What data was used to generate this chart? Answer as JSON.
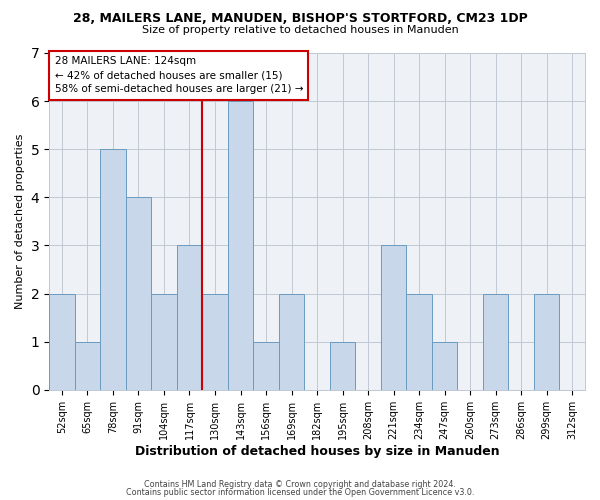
{
  "title1": "28, MAILERS LANE, MANUDEN, BISHOP'S STORTFORD, CM23 1DP",
  "title2": "Size of property relative to detached houses in Manuden",
  "xlabel": "Distribution of detached houses by size in Manuden",
  "ylabel": "Number of detached properties",
  "bar_labels": [
    "52sqm",
    "65sqm",
    "78sqm",
    "91sqm",
    "104sqm",
    "117sqm",
    "130sqm",
    "143sqm",
    "156sqm",
    "169sqm",
    "182sqm",
    "195sqm",
    "208sqm",
    "221sqm",
    "234sqm",
    "247sqm",
    "260sqm",
    "273sqm",
    "286sqm",
    "299sqm",
    "312sqm"
  ],
  "bar_values": [
    2,
    1,
    5,
    4,
    2,
    3,
    2,
    6,
    1,
    2,
    0,
    1,
    0,
    3,
    2,
    1,
    0,
    2,
    0,
    2,
    0
  ],
  "bar_color": "#c8d8ea",
  "bar_edge_color": "#6a9cc0",
  "grid_color": "#c0c8d4",
  "bg_color": "#eef2f7",
  "vline_color": "#cc0000",
  "annotation_box_color": "#cc0000",
  "annotation_line1": "28 MAILERS LANE: 124sqm",
  "annotation_line2": "← 42% of detached houses are smaller (15)",
  "annotation_line3": "58% of semi-detached houses are larger (21) →",
  "ylim": [
    0,
    7
  ],
  "yticks": [
    0,
    1,
    2,
    3,
    4,
    5,
    6,
    7
  ],
  "footnote1": "Contains HM Land Registry data © Crown copyright and database right 2024.",
  "footnote2": "Contains public sector information licensed under the Open Government Licence v3.0."
}
